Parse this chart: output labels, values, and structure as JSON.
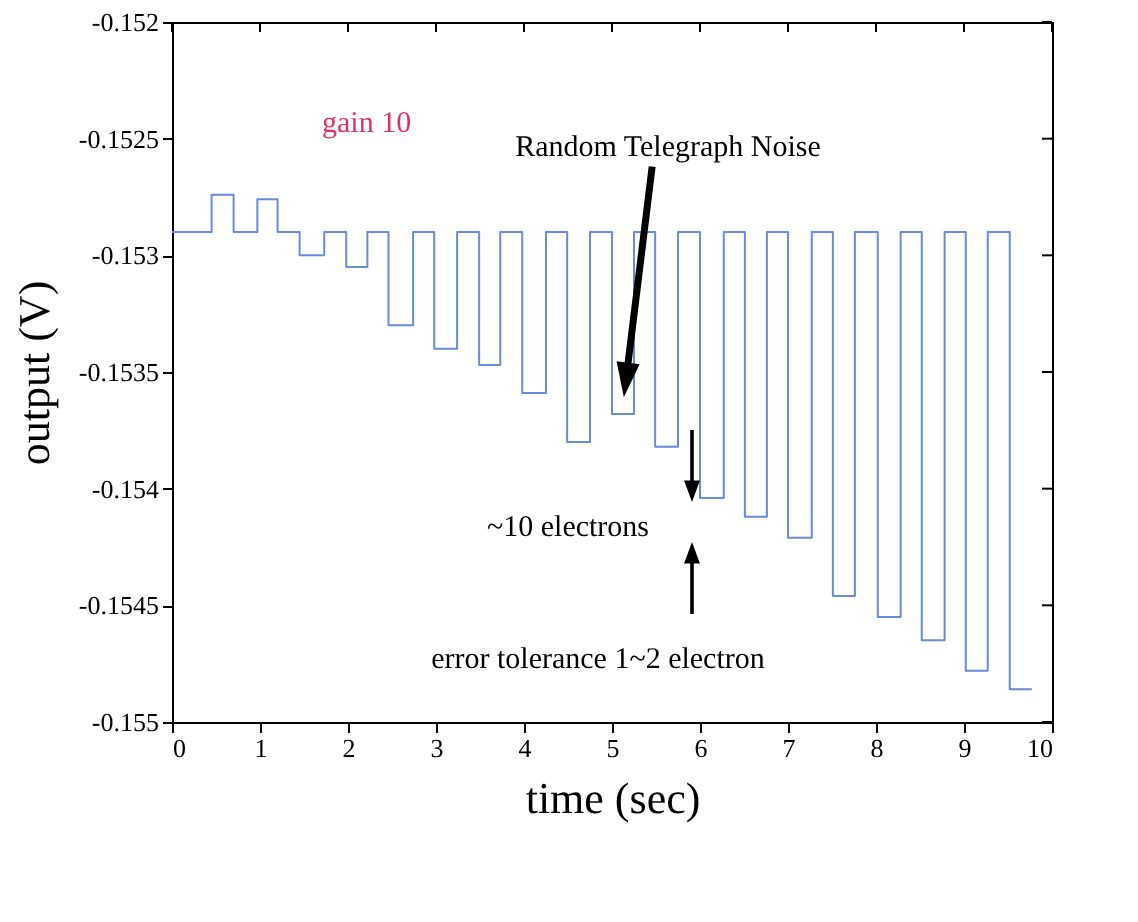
{
  "chart_data": {
    "type": "step",
    "xlabel": "time (sec)",
    "ylabel": "output (V)",
    "x": [
      0,
      0.45,
      0.7,
      0.97,
      1.2,
      1.45,
      1.73,
      1.98,
      2.22,
      2.46,
      2.74,
      2.98,
      3.24,
      3.49,
      3.73,
      3.98,
      4.25,
      4.49,
      4.75,
      5.0,
      5.25,
      5.49,
      5.75,
      6.0,
      6.27,
      6.51,
      6.76,
      7.0,
      7.27,
      7.51,
      7.76,
      8.02,
      8.28,
      8.52,
      8.78,
      9.02,
      9.27,
      9.52,
      9.77
    ],
    "series": [
      {
        "color": "#6a8bd8",
        "values": [
          -0.1529,
          -0.15274,
          -0.1529,
          -0.15276,
          -0.1529,
          -0.153,
          -0.1529,
          -0.15305,
          -0.1529,
          -0.1533,
          -0.1529,
          -0.1534,
          -0.1529,
          -0.15347,
          -0.1529,
          -0.15359,
          -0.1529,
          -0.1538,
          -0.1529,
          -0.15368,
          -0.1529,
          -0.15382,
          -0.1529,
          -0.15404,
          -0.1529,
          -0.15412,
          -0.1529,
          -0.15421,
          -0.1529,
          -0.15446,
          -0.1529,
          -0.15455,
          -0.1529,
          -0.15465,
          -0.1529,
          -0.15478,
          -0.1529,
          -0.15486,
          -0.15486
        ]
      }
    ],
    "xlim": [
      0,
      10
    ],
    "ylim": [
      -0.155,
      -0.152
    ],
    "xticks": [
      0,
      1,
      2,
      3,
      4,
      5,
      6,
      7,
      8,
      9,
      10
    ],
    "yticks": [
      -0.155,
      -0.1545,
      -0.154,
      -0.1535,
      -0.153,
      -0.1525,
      -0.152
    ],
    "grid": false,
    "annotations": [
      "gain 10",
      "Random Telegraph Noise",
      "~10 electrons",
      "error tolerance 1~2 electron"
    ]
  }
}
